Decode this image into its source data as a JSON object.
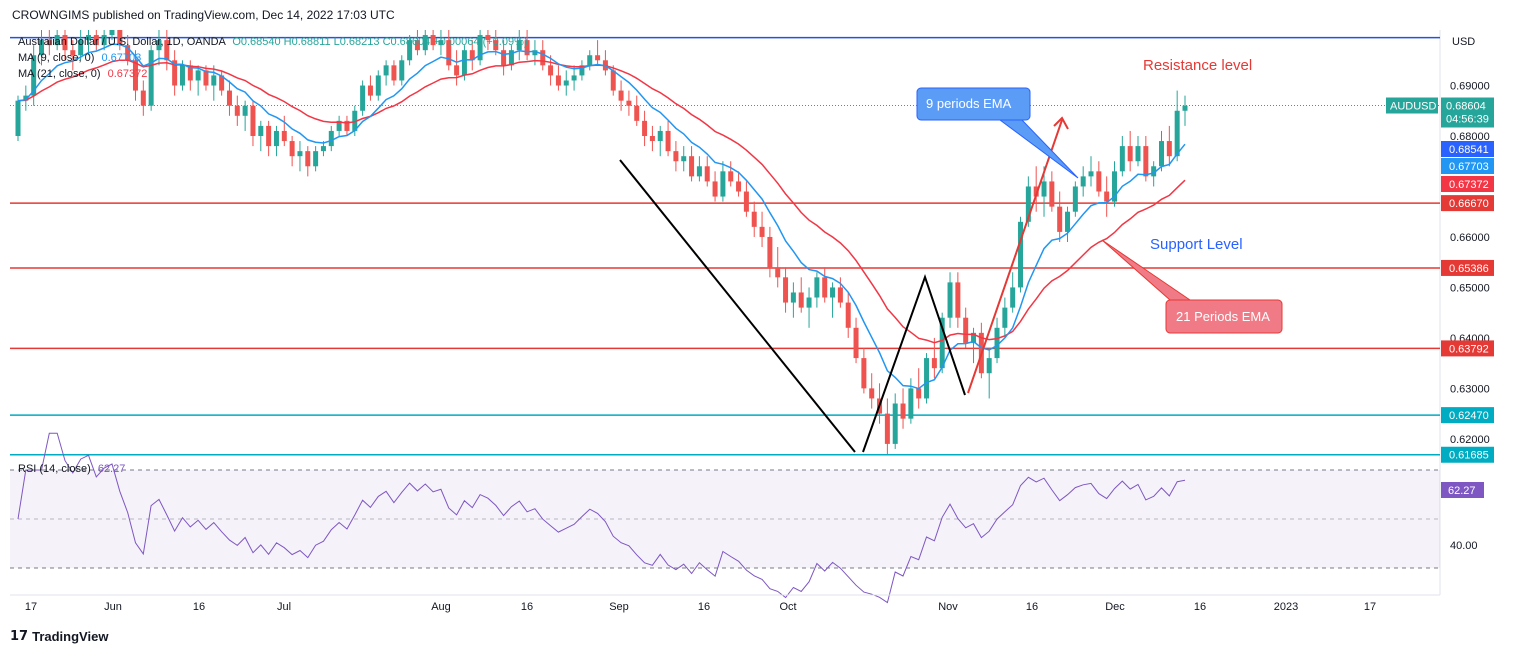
{
  "header": {
    "publisher": "CROWNGIMS published on TradingView.com, Dec 14, 2022 17:03 UTC"
  },
  "footer": {
    "brand": "TradingView",
    "logo_glyph": "17"
  },
  "colors": {
    "up": "#26a69a",
    "down": "#ef5350",
    "ema9": "#2196f3",
    "ema21": "#f23645",
    "rsi": "#7e57c2",
    "support_red": "#e53935",
    "support_teal": "#00acc1",
    "resistance_blue": "#1e53e5",
    "text_red": "#e53935",
    "text_blue": "#2962ff"
  },
  "legend": {
    "symbol": "Australian Dollar / U.S. Dollar, 1D, OANDA",
    "ohlc": "O0.68540  H0.68811  L0.68213  C0.68604  +0.00064 (+0.09%)",
    "ma9_label": "MA (9, close, 0)",
    "ma9_value": "0.67703",
    "ma21_label": "MA (21, close, 0)",
    "ma21_value": "0.67372",
    "rsi_label": "RSI (14, close)",
    "rsi_value": "62.27"
  },
  "chart_data": {
    "type": "candlestick",
    "symbol": "AUDUSD",
    "currency": "USD",
    "timeframe": "1D",
    "y_range": [
      0.6168,
      0.701
    ],
    "price_ticks": [
      "0.69000",
      "0.68000",
      "0.67000",
      "0.66000",
      "0.65000",
      "0.64000",
      "0.63000",
      "0.62000"
    ],
    "x_labels": [
      "17",
      "Jun",
      "16",
      "Jul",
      "Aug",
      "16",
      "Sep",
      "16",
      "Oct",
      "Nov",
      "16",
      "Dec",
      "16",
      "2023",
      "17"
    ],
    "price_tags": [
      {
        "label": "AUDUSD",
        "value": "0.68604",
        "sub": "04:56:39",
        "kind": "last"
      },
      {
        "value": "0.68541",
        "kind": "prev"
      },
      {
        "value": "0.67703",
        "kind": "ema9"
      },
      {
        "value": "0.67372",
        "kind": "ema21"
      },
      {
        "value": "0.66670",
        "kind": "level"
      },
      {
        "value": "0.65386",
        "kind": "level"
      },
      {
        "value": "0.63792",
        "kind": "level"
      },
      {
        "value": "0.62470",
        "kind": "level2"
      },
      {
        "value": "0.61685",
        "kind": "level2"
      }
    ],
    "horizontal_levels": [
      {
        "price": 0.6995,
        "color": "#1e53e5",
        "name": "resistance"
      },
      {
        "price": 0.6667,
        "color": "#e53935"
      },
      {
        "price": 0.65386,
        "color": "#e53935"
      },
      {
        "price": 0.63792,
        "color": "#e53935"
      },
      {
        "price": 0.6247,
        "color": "#00acc1"
      },
      {
        "price": 0.61685,
        "color": "#00acc1"
      }
    ],
    "annotations": {
      "resistance_text": "Resistance level",
      "support_text": "Support Level",
      "ema9_callout": "9 periods EMA",
      "ema21_callout": "21 Periods EMA"
    },
    "candles": [
      [
        0.68,
        0.688,
        0.679,
        0.687
      ],
      [
        0.687,
        0.69,
        0.685,
        0.688
      ],
      [
        0.688,
        0.698,
        0.686,
        0.696
      ],
      [
        0.696,
        0.701,
        0.694,
        0.699
      ],
      [
        0.699,
        0.701,
        0.696,
        0.698
      ],
      [
        0.698,
        0.701,
        0.697,
        0.7
      ],
      [
        0.7,
        0.701,
        0.695,
        0.697
      ],
      [
        0.697,
        0.699,
        0.693,
        0.696
      ],
      [
        0.696,
        0.701,
        0.695,
        0.699
      ],
      [
        0.699,
        0.701,
        0.696,
        0.7
      ],
      [
        0.7,
        0.701,
        0.697,
        0.698
      ],
      [
        0.698,
        0.701,
        0.697,
        0.7
      ],
      [
        0.7,
        0.701,
        0.699,
        0.701
      ],
      [
        0.701,
        0.701,
        0.697,
        0.698
      ],
      [
        0.698,
        0.7,
        0.694,
        0.695
      ],
      [
        0.695,
        0.697,
        0.687,
        0.689
      ],
      [
        0.689,
        0.691,
        0.684,
        0.686
      ],
      [
        0.686,
        0.698,
        0.685,
        0.697
      ],
      [
        0.697,
        0.701,
        0.694,
        0.699
      ],
      [
        0.699,
        0.701,
        0.693,
        0.695
      ],
      [
        0.695,
        0.697,
        0.688,
        0.69
      ],
      [
        0.69,
        0.695,
        0.689,
        0.694
      ],
      [
        0.694,
        0.695,
        0.689,
        0.691
      ],
      [
        0.691,
        0.694,
        0.688,
        0.693
      ],
      [
        0.693,
        0.694,
        0.689,
        0.69
      ],
      [
        0.69,
        0.694,
        0.687,
        0.692
      ],
      [
        0.692,
        0.693,
        0.688,
        0.689
      ],
      [
        0.689,
        0.691,
        0.684,
        0.686
      ],
      [
        0.686,
        0.688,
        0.682,
        0.684
      ],
      [
        0.684,
        0.687,
        0.681,
        0.686
      ],
      [
        0.686,
        0.687,
        0.678,
        0.68
      ],
      [
        0.68,
        0.683,
        0.677,
        0.682
      ],
      [
        0.682,
        0.683,
        0.676,
        0.678
      ],
      [
        0.678,
        0.682,
        0.676,
        0.681
      ],
      [
        0.681,
        0.684,
        0.678,
        0.679
      ],
      [
        0.679,
        0.68,
        0.674,
        0.676
      ],
      [
        0.676,
        0.679,
        0.673,
        0.677
      ],
      [
        0.677,
        0.678,
        0.672,
        0.674
      ],
      [
        0.674,
        0.678,
        0.673,
        0.677
      ],
      [
        0.677,
        0.679,
        0.676,
        0.678
      ],
      [
        0.678,
        0.682,
        0.677,
        0.681
      ],
      [
        0.681,
        0.684,
        0.68,
        0.683
      ],
      [
        0.683,
        0.684,
        0.68,
        0.681
      ],
      [
        0.681,
        0.686,
        0.68,
        0.685
      ],
      [
        0.685,
        0.691,
        0.684,
        0.69
      ],
      [
        0.69,
        0.692,
        0.687,
        0.688
      ],
      [
        0.688,
        0.693,
        0.687,
        0.692
      ],
      [
        0.692,
        0.695,
        0.69,
        0.694
      ],
      [
        0.694,
        0.695,
        0.69,
        0.691
      ],
      [
        0.691,
        0.696,
        0.69,
        0.695
      ],
      [
        0.695,
        0.7,
        0.694,
        0.699
      ],
      [
        0.699,
        0.701,
        0.696,
        0.697
      ],
      [
        0.697,
        0.701,
        0.696,
        0.7
      ],
      [
        0.7,
        0.701,
        0.697,
        0.698
      ],
      [
        0.698,
        0.701,
        0.696,
        0.699
      ],
      [
        0.699,
        0.701,
        0.693,
        0.694
      ],
      [
        0.694,
        0.697,
        0.69,
        0.692
      ],
      [
        0.692,
        0.698,
        0.691,
        0.697
      ],
      [
        0.697,
        0.699,
        0.693,
        0.695
      ],
      [
        0.695,
        0.701,
        0.694,
        0.7
      ],
      [
        0.7,
        0.701,
        0.697,
        0.699
      ],
      [
        0.699,
        0.701,
        0.696,
        0.697
      ],
      [
        0.697,
        0.699,
        0.692,
        0.694
      ],
      [
        0.694,
        0.698,
        0.693,
        0.697
      ],
      [
        0.697,
        0.701,
        0.695,
        0.699
      ],
      [
        0.699,
        0.701,
        0.695,
        0.696
      ],
      [
        0.696,
        0.699,
        0.694,
        0.697
      ],
      [
        0.697,
        0.699,
        0.693,
        0.694
      ],
      [
        0.694,
        0.696,
        0.69,
        0.692
      ],
      [
        0.692,
        0.694,
        0.689,
        0.69
      ],
      [
        0.69,
        0.693,
        0.688,
        0.691
      ],
      [
        0.691,
        0.694,
        0.689,
        0.692
      ],
      [
        0.692,
        0.695,
        0.691,
        0.694
      ],
      [
        0.694,
        0.697,
        0.693,
        0.696
      ],
      [
        0.696,
        0.699,
        0.694,
        0.695
      ],
      [
        0.695,
        0.697,
        0.692,
        0.693
      ],
      [
        0.693,
        0.694,
        0.688,
        0.689
      ],
      [
        0.689,
        0.691,
        0.685,
        0.687
      ],
      [
        0.687,
        0.689,
        0.684,
        0.686
      ],
      [
        0.686,
        0.688,
        0.682,
        0.683
      ],
      [
        0.683,
        0.685,
        0.678,
        0.68
      ],
      [
        0.68,
        0.682,
        0.677,
        0.679
      ],
      [
        0.679,
        0.682,
        0.676,
        0.681
      ],
      [
        0.681,
        0.683,
        0.676,
        0.677
      ],
      [
        0.677,
        0.679,
        0.673,
        0.675
      ],
      [
        0.675,
        0.678,
        0.673,
        0.676
      ],
      [
        0.676,
        0.678,
        0.671,
        0.672
      ],
      [
        0.672,
        0.676,
        0.671,
        0.674
      ],
      [
        0.674,
        0.676,
        0.67,
        0.671
      ],
      [
        0.671,
        0.673,
        0.667,
        0.668
      ],
      [
        0.668,
        0.675,
        0.667,
        0.673
      ],
      [
        0.673,
        0.675,
        0.67,
        0.671
      ],
      [
        0.671,
        0.673,
        0.668,
        0.669
      ],
      [
        0.669,
        0.671,
        0.664,
        0.665
      ],
      [
        0.665,
        0.667,
        0.66,
        0.662
      ],
      [
        0.662,
        0.665,
        0.658,
        0.66
      ],
      [
        0.66,
        0.662,
        0.652,
        0.654
      ],
      [
        0.654,
        0.658,
        0.65,
        0.652
      ],
      [
        0.652,
        0.654,
        0.645,
        0.647
      ],
      [
        0.647,
        0.651,
        0.644,
        0.649
      ],
      [
        0.649,
        0.652,
        0.645,
        0.646
      ],
      [
        0.646,
        0.65,
        0.642,
        0.648
      ],
      [
        0.648,
        0.653,
        0.646,
        0.652
      ],
      [
        0.652,
        0.654,
        0.647,
        0.648
      ],
      [
        0.648,
        0.651,
        0.644,
        0.65
      ],
      [
        0.65,
        0.652,
        0.646,
        0.647
      ],
      [
        0.647,
        0.649,
        0.64,
        0.642
      ],
      [
        0.642,
        0.644,
        0.635,
        0.636
      ],
      [
        0.636,
        0.638,
        0.629,
        0.63
      ],
      [
        0.63,
        0.633,
        0.626,
        0.628
      ],
      [
        0.628,
        0.631,
        0.623,
        0.625
      ],
      [
        0.625,
        0.628,
        0.617,
        0.619
      ],
      [
        0.619,
        0.629,
        0.618,
        0.627
      ],
      [
        0.627,
        0.63,
        0.622,
        0.624
      ],
      [
        0.624,
        0.632,
        0.623,
        0.63
      ],
      [
        0.63,
        0.634,
        0.626,
        0.628
      ],
      [
        0.628,
        0.637,
        0.627,
        0.636
      ],
      [
        0.636,
        0.64,
        0.632,
        0.634
      ],
      [
        0.634,
        0.645,
        0.633,
        0.644
      ],
      [
        0.644,
        0.653,
        0.642,
        0.651
      ],
      [
        0.651,
        0.653,
        0.642,
        0.644
      ],
      [
        0.644,
        0.646,
        0.638,
        0.639
      ],
      [
        0.639,
        0.642,
        0.635,
        0.641
      ],
      [
        0.641,
        0.643,
        0.632,
        0.633
      ],
      [
        0.633,
        0.638,
        0.628,
        0.636
      ],
      [
        0.636,
        0.644,
        0.635,
        0.642
      ],
      [
        0.642,
        0.648,
        0.64,
        0.646
      ],
      [
        0.646,
        0.653,
        0.645,
        0.65
      ],
      [
        0.65,
        0.664,
        0.649,
        0.663
      ],
      [
        0.663,
        0.672,
        0.662,
        0.67
      ],
      [
        0.67,
        0.674,
        0.665,
        0.668
      ],
      [
        0.668,
        0.674,
        0.664,
        0.671
      ],
      [
        0.671,
        0.673,
        0.665,
        0.666
      ],
      [
        0.666,
        0.669,
        0.659,
        0.661
      ],
      [
        0.661,
        0.666,
        0.659,
        0.665
      ],
      [
        0.665,
        0.671,
        0.664,
        0.67
      ],
      [
        0.67,
        0.674,
        0.668,
        0.672
      ],
      [
        0.672,
        0.676,
        0.67,
        0.673
      ],
      [
        0.673,
        0.675,
        0.668,
        0.669
      ],
      [
        0.669,
        0.672,
        0.664,
        0.667
      ],
      [
        0.667,
        0.675,
        0.666,
        0.673
      ],
      [
        0.673,
        0.68,
        0.672,
        0.678
      ],
      [
        0.678,
        0.681,
        0.673,
        0.675
      ],
      [
        0.675,
        0.68,
        0.674,
        0.678
      ],
      [
        0.678,
        0.68,
        0.671,
        0.672
      ],
      [
        0.672,
        0.675,
        0.67,
        0.674
      ],
      [
        0.674,
        0.681,
        0.673,
        0.679
      ],
      [
        0.679,
        0.682,
        0.674,
        0.676
      ],
      [
        0.676,
        0.689,
        0.675,
        0.685
      ],
      [
        0.685,
        0.688,
        0.682,
        0.686
      ]
    ]
  }
}
